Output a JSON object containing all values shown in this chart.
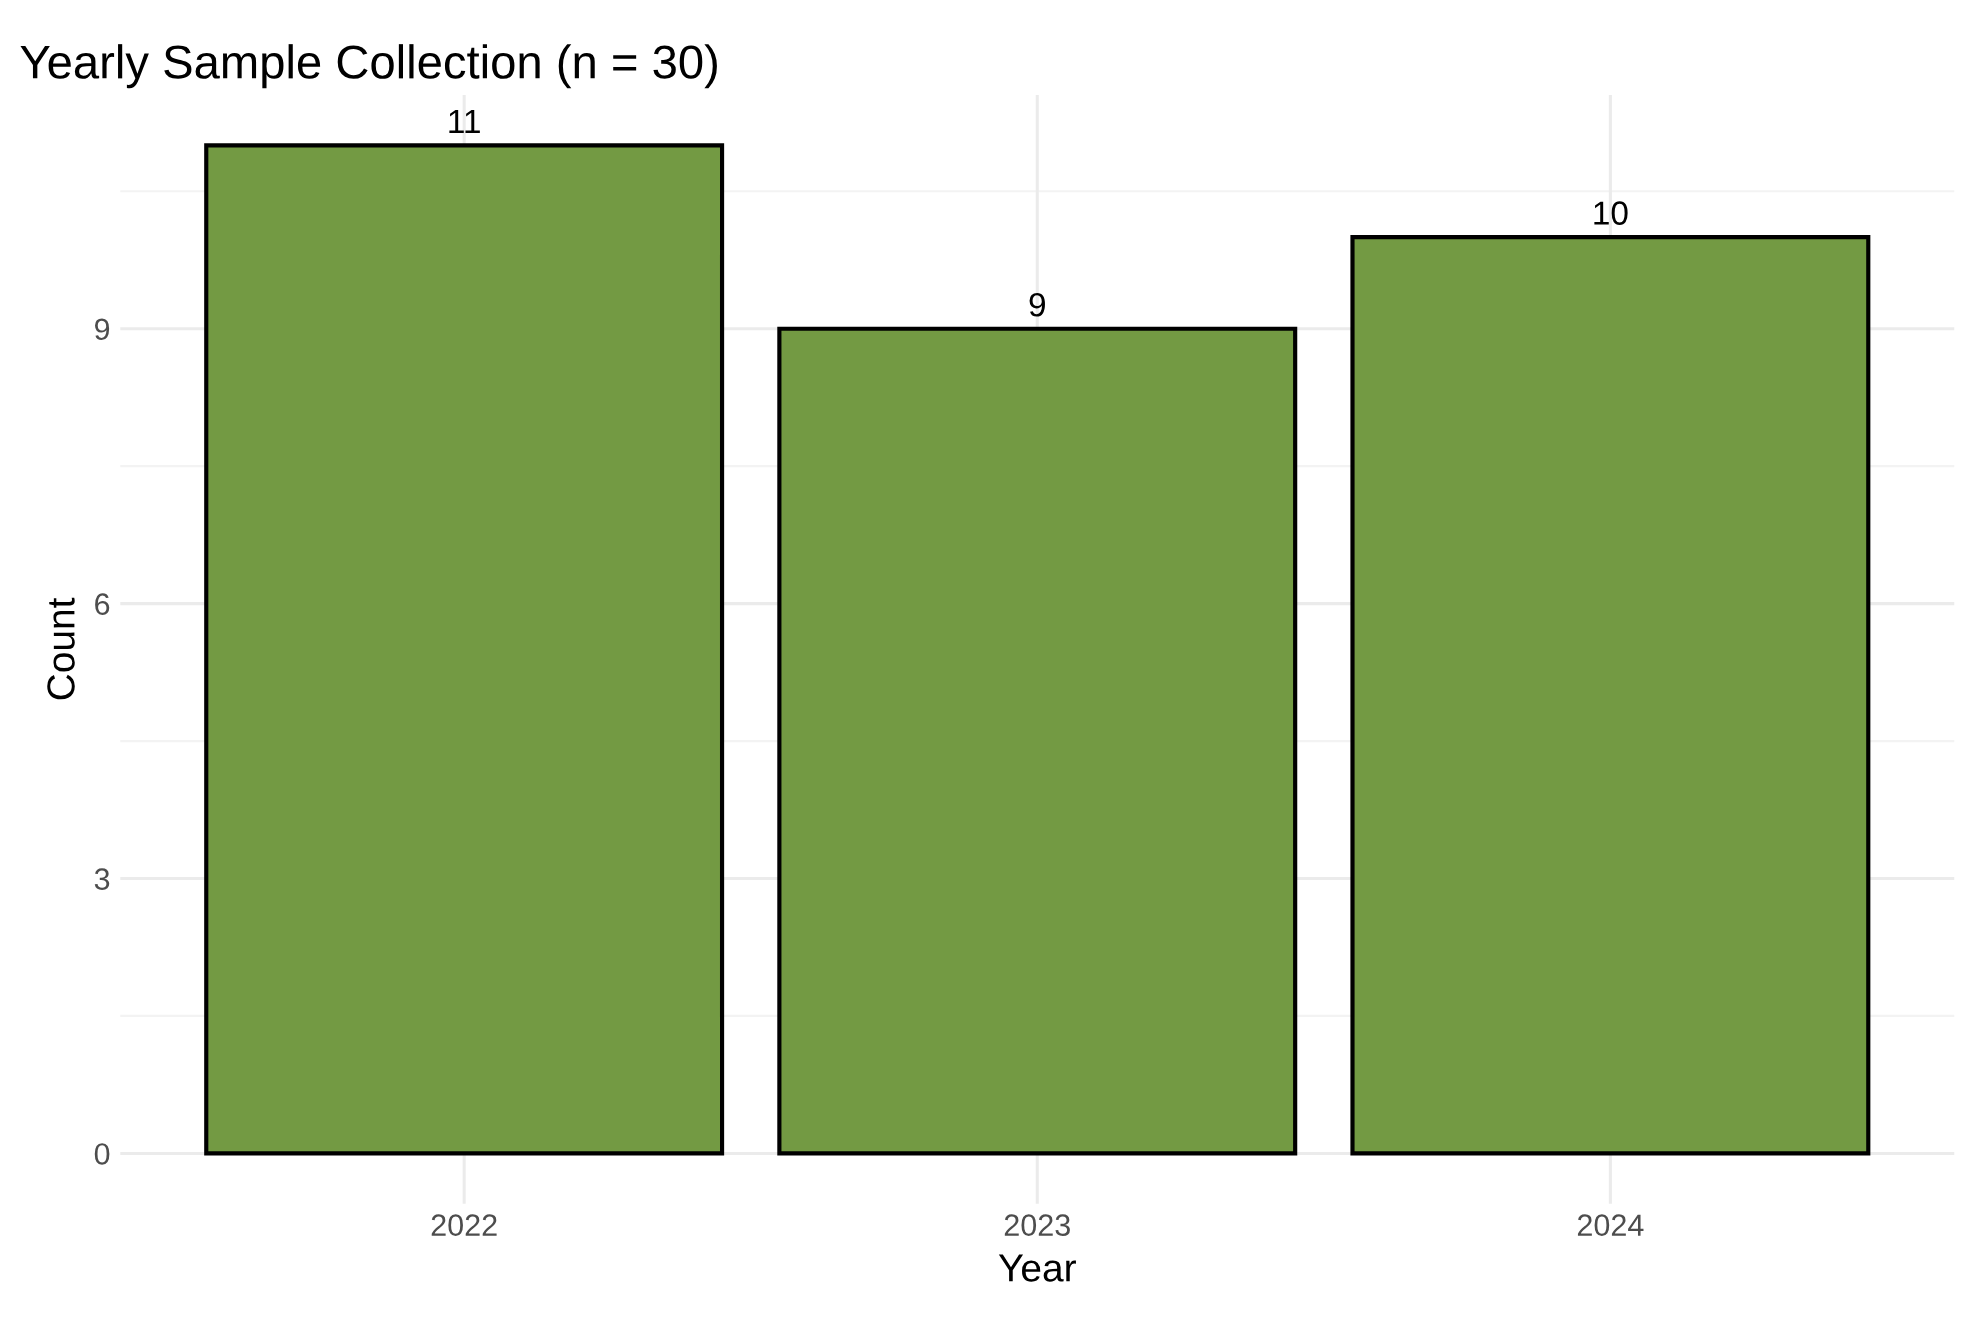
{
  "chart_data": {
    "type": "bar",
    "title": "Yearly Sample Collection (n = 30)",
    "xlabel": "Year",
    "ylabel": "Count",
    "categories": [
      "2022",
      "2023",
      "2024"
    ],
    "values": [
      11,
      9,
      10
    ],
    "color": "#739a43",
    "ylim": [
      -0.55,
      11.55
    ],
    "yticks": [
      0,
      3,
      6,
      9
    ],
    "grid": true,
    "data_labels": true
  }
}
